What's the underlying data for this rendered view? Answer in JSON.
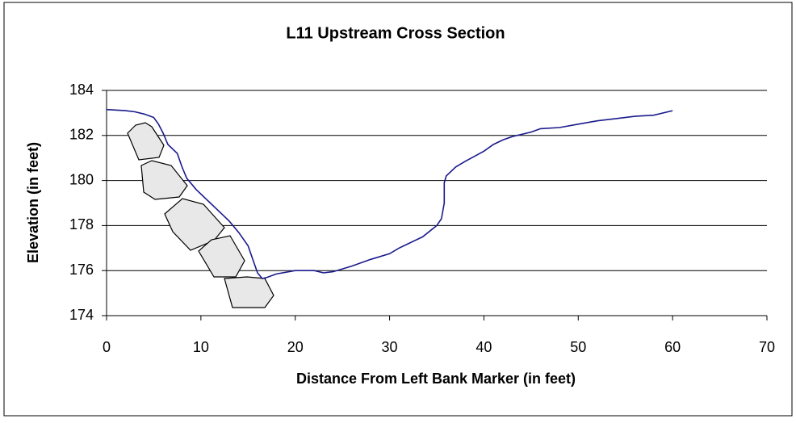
{
  "chart_data": {
    "type": "line",
    "title": "L11 Upstream Cross Section",
    "x_label": "Distance From Left Bank Marker (in feet)",
    "y_label": "Elevation (in feet)",
    "x": [
      0,
      2,
      3,
      4,
      5,
      5.5,
      6,
      6.5,
      7.5,
      8,
      8.5,
      9.5,
      11,
      13,
      14,
      15,
      15.5,
      16,
      16.5,
      17,
      18,
      20,
      22,
      23,
      24,
      26,
      28,
      30,
      31,
      33.5,
      35,
      35.5,
      35.8,
      35.8,
      36,
      37,
      38,
      40,
      41,
      42,
      43,
      45,
      46,
      48,
      50,
      52,
      54,
      56,
      58,
      60
    ],
    "values": [
      183.15,
      183.1,
      183.05,
      182.95,
      182.8,
      182.5,
      182.1,
      181.6,
      181.2,
      180.6,
      180.1,
      179.6,
      179.0,
      178.2,
      177.7,
      177.1,
      176.5,
      175.9,
      175.65,
      175.7,
      175.85,
      176,
      176,
      175.9,
      175.95,
      176.2,
      176.5,
      176.75,
      177,
      177.5,
      178,
      178.3,
      179,
      179.9,
      180.2,
      180.6,
      180.85,
      181.3,
      181.6,
      181.8,
      181.95,
      182.15,
      182.3,
      182.35,
      182.5,
      182.65,
      182.75,
      182.85,
      182.9,
      183.1
    ],
    "color": "#1a1a8c",
    "xlim": [
      0,
      70
    ],
    "xticks": [
      0,
      10,
      20,
      30,
      40,
      50,
      60,
      70
    ],
    "ylim": [
      174,
      184
    ],
    "yticks": [
      174,
      176,
      178,
      180,
      182,
      184
    ],
    "grid": true
  }
}
